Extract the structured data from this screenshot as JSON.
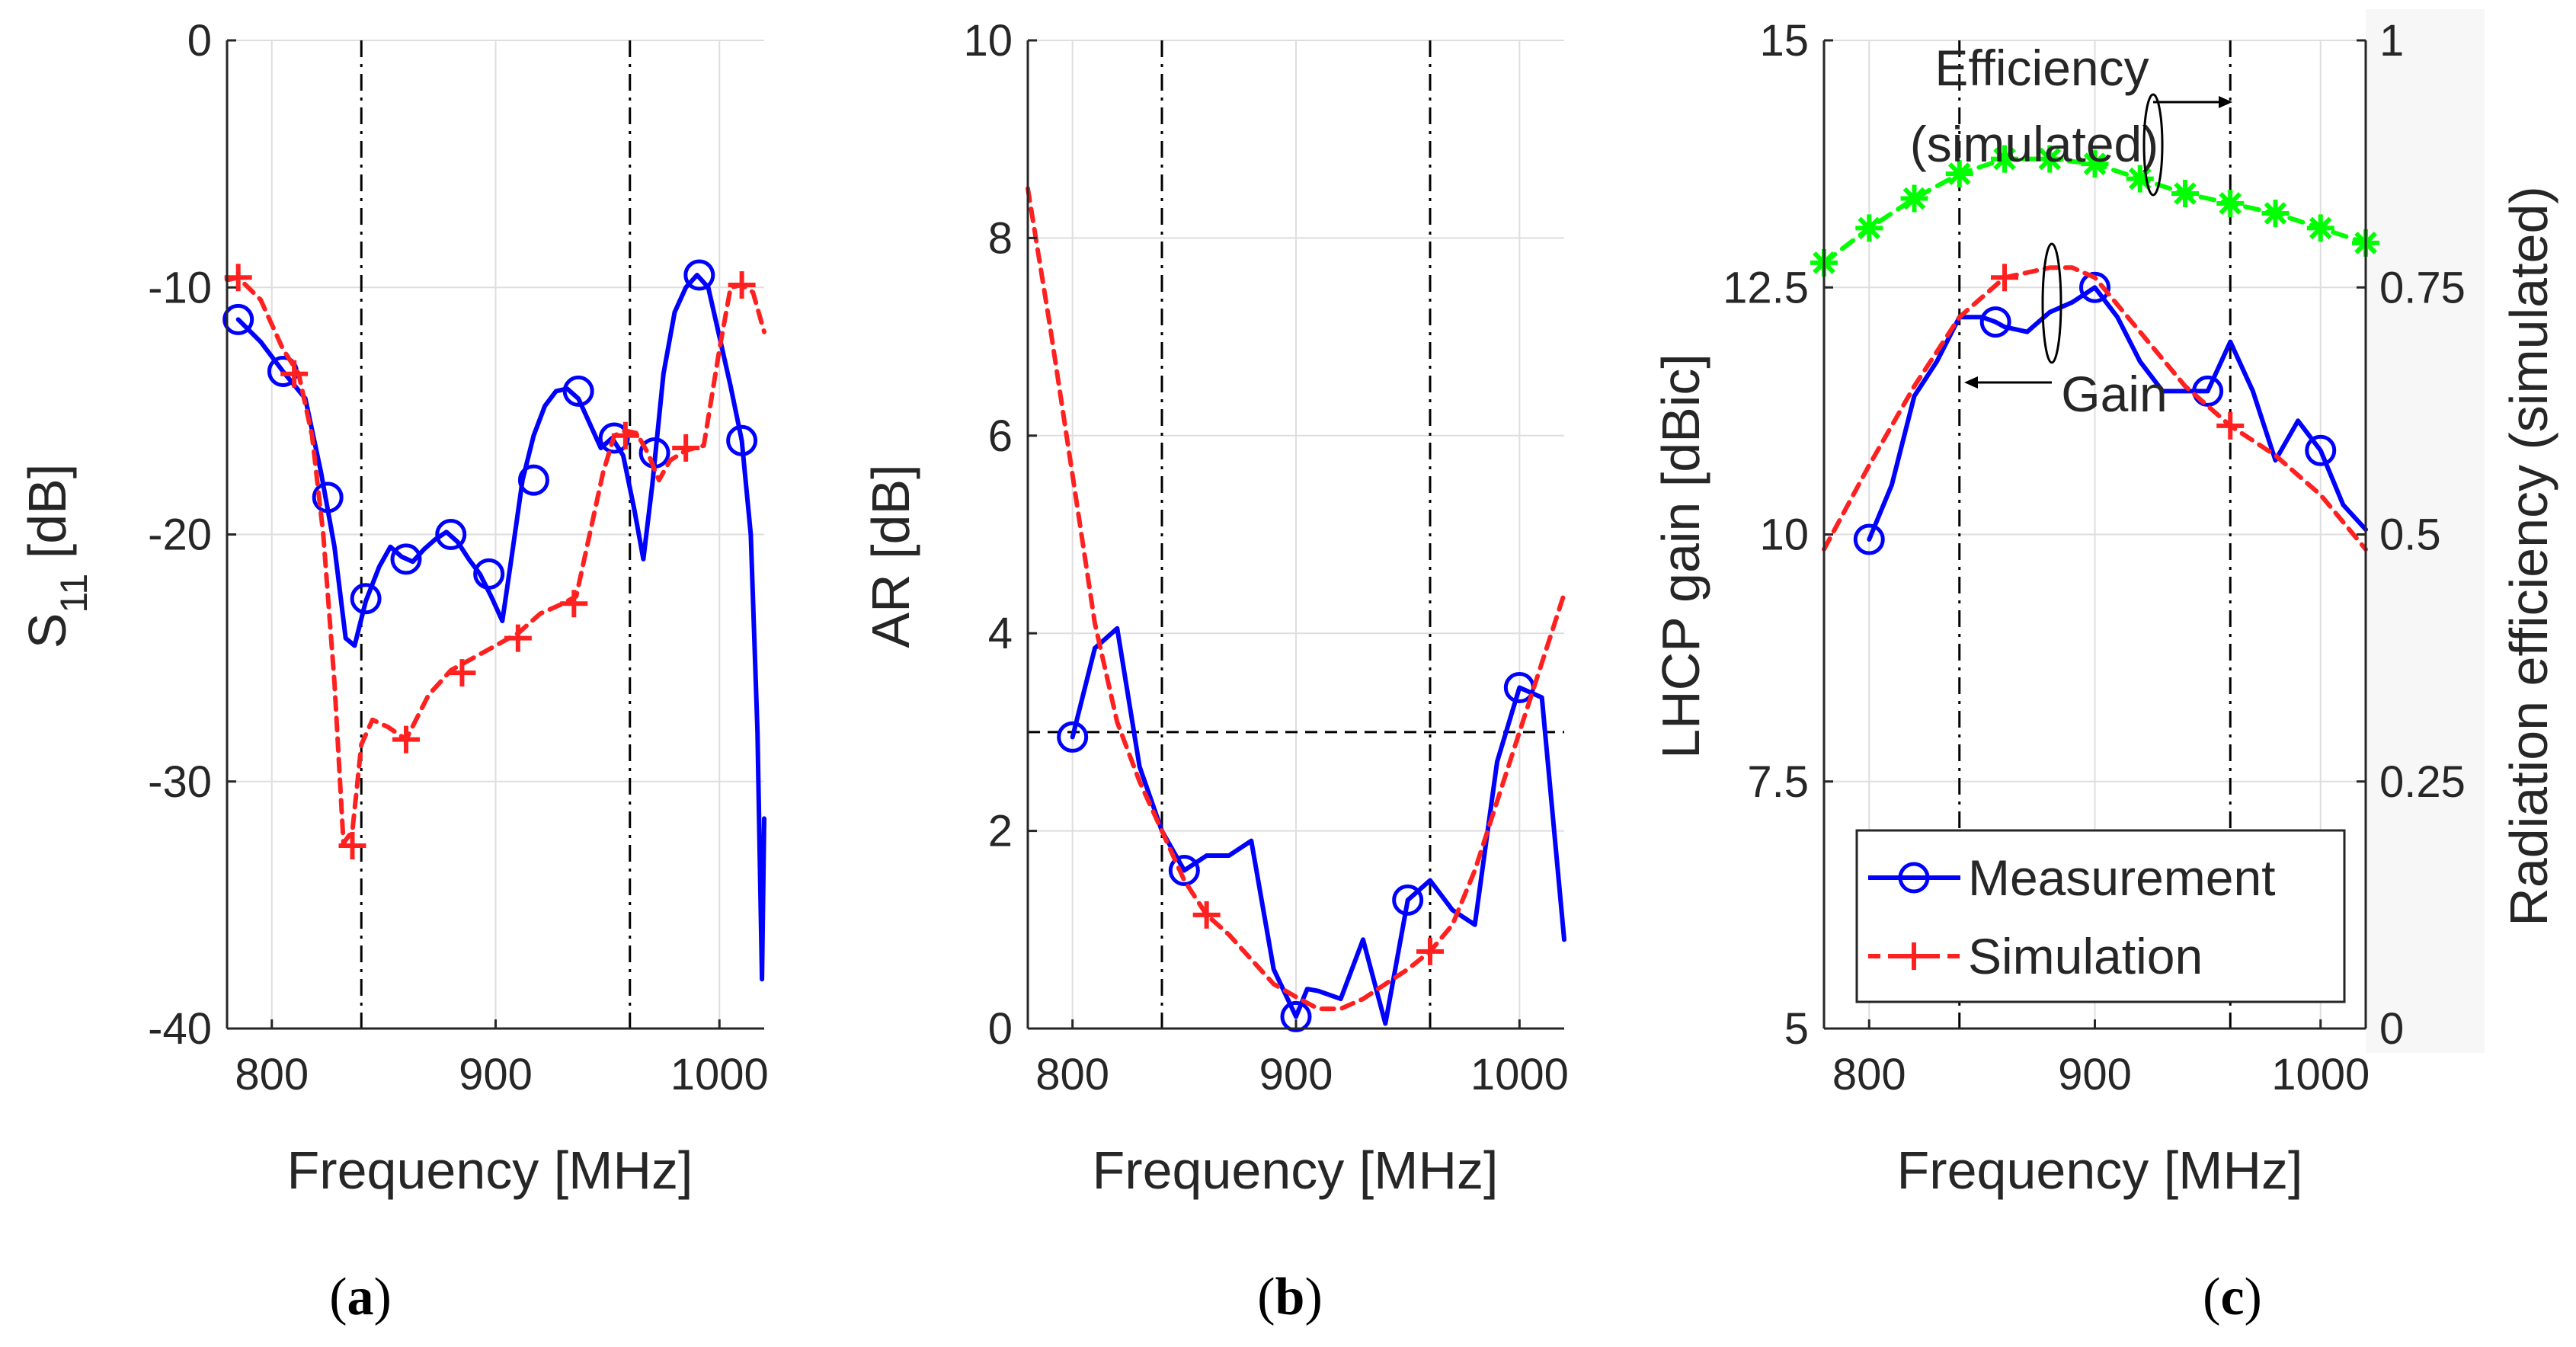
{
  "chart_data": [
    {
      "type": "line",
      "panel_label": "(a)",
      "panel_letter": "a",
      "xlabel": "Frequency [MHz]",
      "ylabel": "S",
      "ylabel_sub": "11",
      "ylabel_unit": " [dB]",
      "xlim": [
        780,
        1020
      ],
      "ylim": [
        -40,
        0
      ],
      "xticks": [
        800,
        900,
        1000
      ],
      "yticks": [
        0,
        -10,
        -20,
        -30,
        -40
      ],
      "grid": true,
      "vlines": [
        840,
        960
      ],
      "series": [
        {
          "name": "Measurement",
          "color": "#0000ff",
          "style": "solid",
          "marker": "circle",
          "x": [
            785,
            795,
            805,
            815,
            822,
            828,
            833,
            837,
            842,
            848,
            853,
            858,
            863,
            868,
            873,
            878,
            883,
            888,
            893,
            898,
            903,
            907,
            912,
            917,
            922,
            927,
            932,
            937,
            942,
            947,
            952,
            957,
            962,
            966,
            970,
            975,
            980,
            985,
            990,
            995,
            1000,
            1005,
            1010,
            1014,
            1017,
            1019,
            1020
          ],
          "y": [
            -11.3,
            -12.2,
            -13.4,
            -14.5,
            -17.5,
            -20.5,
            -24.2,
            -24.5,
            -22.7,
            -21.3,
            -20.5,
            -20.9,
            -21.1,
            -20.6,
            -20.2,
            -19.9,
            -20.3,
            -21.0,
            -21.6,
            -22.5,
            -23.5,
            -21.0,
            -17.8,
            -16.0,
            -14.8,
            -14.2,
            -14.1,
            -14.5,
            -15.5,
            -16.5,
            -16.1,
            -16.8,
            -19.0,
            -21.0,
            -18.0,
            -13.5,
            -11.0,
            -10.0,
            -9.5,
            -10.0,
            -12.0,
            -14.0,
            -16.2,
            -20.0,
            -28.0,
            -38.0,
            -31.5
          ],
          "marker_x": [
            785,
            805,
            825,
            842,
            860,
            880,
            897,
            917,
            937,
            953,
            971,
            991,
            1010
          ],
          "marker_y": [
            -11.3,
            -13.4,
            -18.5,
            -22.6,
            -21.0,
            -20.0,
            -21.6,
            -17.8,
            -14.2,
            -16.1,
            -16.7,
            -9.5,
            -16.2
          ]
        },
        {
          "name": "Simulation",
          "color": "#ff2020",
          "style": "dashed",
          "marker": "plus",
          "x": [
            780,
            785,
            795,
            805,
            812,
            818,
            823,
            828,
            832,
            836,
            840,
            845,
            852,
            860,
            870,
            880,
            890,
            900,
            910,
            920,
            930,
            936,
            942,
            948,
            953,
            958,
            963,
            968,
            973,
            978,
            985,
            993,
            1000,
            1005,
            1010,
            1015,
            1020
          ],
          "y": [
            -9.7,
            -9.6,
            -10.5,
            -12.5,
            -13.5,
            -16.0,
            -20.0,
            -26.0,
            -32.5,
            -32.0,
            -28.5,
            -27.5,
            -27.8,
            -28.3,
            -26.5,
            -25.5,
            -25.0,
            -24.5,
            -24.0,
            -23.2,
            -22.8,
            -22.5,
            -20.0,
            -17.5,
            -16.0,
            -15.8,
            -15.9,
            -16.7,
            -17.8,
            -17.0,
            -16.6,
            -16.4,
            -12.5,
            -10.0,
            -9.9,
            -10.2,
            -11.8
          ],
          "marker_x": [
            785,
            810,
            836,
            860,
            885,
            910,
            935,
            958,
            985,
            1010
          ],
          "marker_y": [
            -9.6,
            -13.5,
            -32.6,
            -28.3,
            -25.6,
            -24.2,
            -22.8,
            -16.0,
            -16.5,
            -9.9
          ]
        }
      ]
    },
    {
      "type": "line",
      "panel_label": "(b)",
      "panel_letter": "b",
      "xlabel": "Frequency [MHz]",
      "ylabel": "AR [dB]",
      "xlim": [
        780,
        1020
      ],
      "ylim": [
        0,
        10
      ],
      "xticks": [
        800,
        900,
        1000
      ],
      "yticks": [
        0,
        2,
        4,
        6,
        8,
        10
      ],
      "grid": true,
      "vlines": [
        840,
        960
      ],
      "hline": 3,
      "series": [
        {
          "name": "Measurement",
          "color": "#0000ff",
          "style": "solid",
          "marker": "circle",
          "x": [
            800,
            810,
            820,
            830,
            840,
            850,
            860,
            870,
            880,
            890,
            900,
            905,
            910,
            920,
            930,
            940,
            950,
            960,
            970,
            980,
            990,
            1000,
            1005,
            1010,
            1020
          ],
          "y": [
            2.95,
            3.85,
            4.05,
            2.65,
            2.0,
            1.6,
            1.75,
            1.75,
            1.9,
            0.6,
            0.12,
            0.4,
            0.38,
            0.3,
            0.9,
            0.05,
            1.3,
            1.5,
            1.2,
            1.05,
            2.7,
            3.45,
            3.4,
            3.35,
            0.9
          ],
          "marker_x": [
            800,
            850,
            900,
            950,
            1000
          ],
          "marker_y": [
            2.95,
            1.6,
            0.12,
            1.3,
            3.45
          ]
        },
        {
          "name": "Simulation",
          "color": "#ff2020",
          "style": "dashed",
          "marker": "plus",
          "x": [
            780,
            790,
            800,
            810,
            820,
            830,
            840,
            850,
            860,
            870,
            880,
            890,
            900,
            910,
            920,
            930,
            940,
            950,
            960,
            970,
            980,
            990,
            1000,
            1010,
            1020
          ],
          "y": [
            8.5,
            7.1,
            5.6,
            4.1,
            3.1,
            2.5,
            2.0,
            1.5,
            1.15,
            0.95,
            0.7,
            0.45,
            0.32,
            0.2,
            0.2,
            0.3,
            0.45,
            0.6,
            0.78,
            1.05,
            1.6,
            2.3,
            3.0,
            3.7,
            4.4
          ],
          "marker_x": [
            860,
            960
          ],
          "marker_y": [
            1.15,
            0.78
          ]
        }
      ]
    },
    {
      "type": "line",
      "panel_label": "(c)",
      "panel_letter": "c",
      "xlabel": "Frequency [MHz]",
      "ylabel": "LHCP gain [dBic]",
      "ylabel_right": "Radiation efficiency (simulated)",
      "xlim": [
        780,
        1020
      ],
      "ylim": [
        5,
        15
      ],
      "ylim_right": [
        0,
        1
      ],
      "xticks": [
        800,
        900,
        1000
      ],
      "yticks": [
        5,
        7.5,
        10,
        12.5,
        15
      ],
      "yticks_right": [
        0,
        0.25,
        0.5,
        0.75,
        1
      ],
      "grid": true,
      "vlines": [
        840,
        960
      ],
      "annotations": {
        "efficiency_l1": "Efficiency",
        "efficiency_l2": "(simulated)",
        "gain": "Gain"
      },
      "legend": {
        "location": "bottom-left",
        "entries": [
          "Measurement",
          "Simulation"
        ]
      },
      "series": [
        {
          "name": "Measurement",
          "color": "#0000ff",
          "style": "solid",
          "marker": "circle",
          "axis": "left",
          "x": [
            800,
            810,
            820,
            830,
            840,
            850,
            856,
            860,
            870,
            880,
            890,
            900,
            910,
            920,
            930,
            940,
            950,
            960,
            970,
            980,
            990,
            1000,
            1010,
            1020
          ],
          "y": [
            9.95,
            10.5,
            11.4,
            11.75,
            12.2,
            12.2,
            12.15,
            12.1,
            12.05,
            12.25,
            12.35,
            12.5,
            12.2,
            11.75,
            11.45,
            11.45,
            11.45,
            11.95,
            11.45,
            10.75,
            11.15,
            10.85,
            10.3,
            10.05
          ],
          "marker_x": [
            800,
            856,
            900,
            950,
            1000
          ],
          "marker_y": [
            9.95,
            12.15,
            12.5,
            11.45,
            10.85
          ]
        },
        {
          "name": "Simulation",
          "color": "#ff2020",
          "style": "dashed",
          "marker": "plus",
          "axis": "left",
          "x": [
            780,
            800,
            820,
            840,
            860,
            880,
            890,
            900,
            920,
            940,
            960,
            980,
            1000,
            1020
          ],
          "y": [
            9.85,
            10.7,
            11.5,
            12.2,
            12.6,
            12.7,
            12.7,
            12.6,
            12.05,
            11.5,
            11.1,
            10.8,
            10.4,
            9.85
          ],
          "marker_x": [
            860,
            960
          ],
          "marker_y": [
            12.6,
            11.1
          ]
        },
        {
          "name": "Efficiency (simulated)",
          "color": "#00ff00",
          "style": "dashed",
          "marker": "asterisk",
          "axis": "right",
          "x": [
            780,
            800,
            820,
            840,
            860,
            880,
            900,
            920,
            940,
            960,
            980,
            1000,
            1020
          ],
          "y": [
            0.775,
            0.81,
            0.84,
            0.865,
            0.88,
            0.88,
            0.875,
            0.86,
            0.845,
            0.835,
            0.825,
            0.81,
            0.795
          ],
          "marker_x": [
            780,
            800,
            820,
            840,
            860,
            880,
            900,
            920,
            940,
            960,
            980,
            1000,
            1020
          ],
          "marker_y": [
            0.775,
            0.81,
            0.84,
            0.865,
            0.88,
            0.88,
            0.875,
            0.86,
            0.845,
            0.835,
            0.825,
            0.81,
            0.795
          ]
        }
      ]
    }
  ]
}
